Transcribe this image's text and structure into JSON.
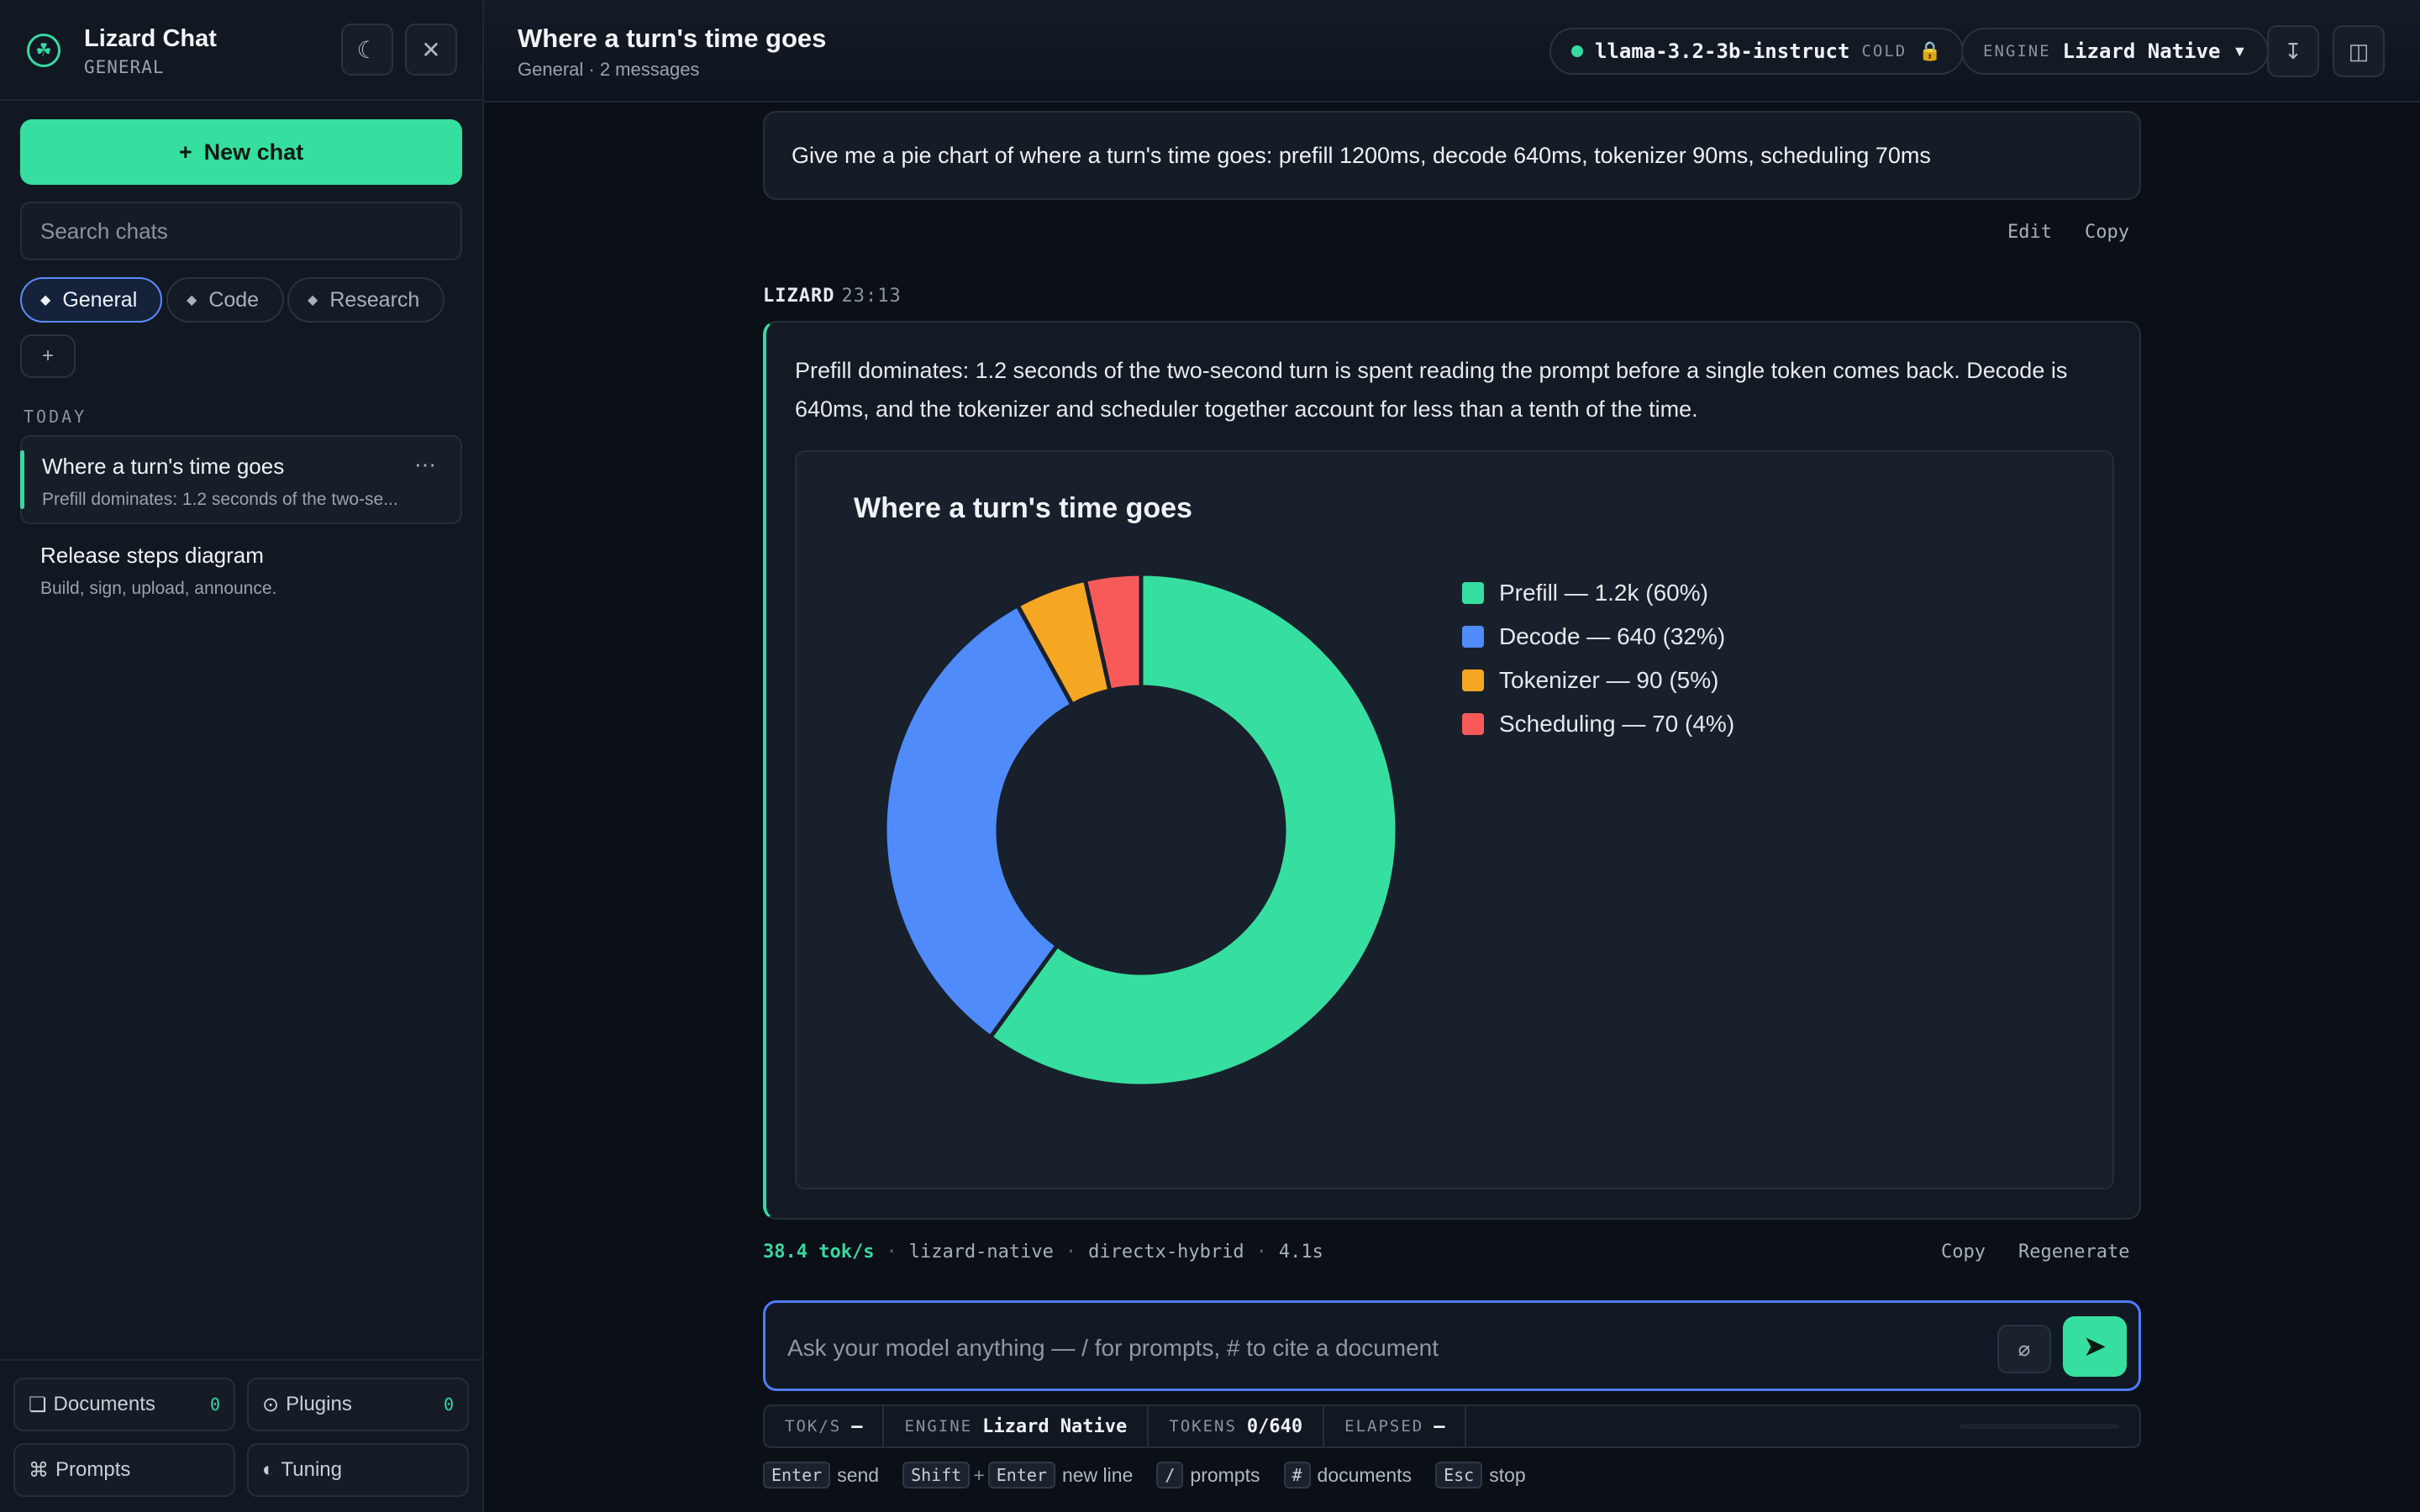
{
  "sidebar": {
    "brand_title": "Lizard Chat",
    "brand_sub": "GENERAL",
    "new_chat": "New chat",
    "search_placeholder": "Search chats",
    "chips": [
      {
        "label": "General"
      },
      {
        "label": "Code"
      },
      {
        "label": "Research"
      }
    ],
    "section_label": "TODAY",
    "conversations": [
      {
        "title": "Where a turn's time goes",
        "preview": "Prefill dominates: 1.2 seconds of the two-se..."
      },
      {
        "title": "Release steps diagram",
        "preview": "Build, sign, upload, announce."
      }
    ],
    "footer": {
      "documents": "Documents",
      "documents_count": "0",
      "plugins": "Plugins",
      "plugins_count": "0",
      "prompts": "Prompts",
      "tuning": "Tuning"
    }
  },
  "header": {
    "title": "Where a turn's time goes",
    "meta": "General · 2 messages",
    "model": "llama-3.2-3b-instruct",
    "model_state": "COLD",
    "engine_label": "ENGINE",
    "engine_value": "Lizard Native"
  },
  "messages": {
    "user_text": "Give me a pie chart of where a turn's time goes: prefill 1200ms, decode 640ms, tokenizer 90ms, scheduling 70ms",
    "user_edit": "Edit",
    "user_copy": "Copy",
    "assistant_name": "LIZARD",
    "assistant_time": "23:13",
    "assistant_text": "Prefill dominates: 1.2 seconds of the two-second turn is spent reading the prompt before a single token comes back. Decode is 640ms, and the tokenizer and scheduler together account for less than a tenth of the time.",
    "assistant_copy": "Copy",
    "assistant_regen": "Regenerate",
    "stats": {
      "tps": "38.4 tok/s",
      "runtime": "lizard-native",
      "backend": "directx-hybrid",
      "elapsed": "4.1s"
    }
  },
  "chart_data": {
    "type": "pie",
    "title": "Where a turn's time goes",
    "donut": true,
    "slices": [
      {
        "label": "Prefill",
        "value": 1200,
        "legend": "Prefill — 1.2k (60%)",
        "color": "#36df9f"
      },
      {
        "label": "Decode",
        "value": 640,
        "legend": "Decode — 640 (32%)",
        "color": "#4f8bfb"
      },
      {
        "label": "Tokenizer",
        "value": 90,
        "legend": "Tokenizer — 90 (5%)",
        "color": "#f5a623"
      },
      {
        "label": "Scheduling",
        "value": 70,
        "legend": "Scheduling — 70 (4%)",
        "color": "#f85a5a"
      }
    ],
    "legend_position": "right"
  },
  "composer": {
    "placeholder": "Ask your model anything — / for prompts, # to cite a document"
  },
  "statusbar": {
    "tps_label": "TOK/S",
    "tps_value": "–",
    "engine_label": "ENGINE",
    "engine_value": "Lizard Native",
    "tokens_label": "TOKENS",
    "tokens_value": "0/640",
    "elapsed_label": "ELAPSED",
    "elapsed_value": "–"
  },
  "hints": [
    {
      "keys": [
        "Enter"
      ],
      "text": "send"
    },
    {
      "keys": [
        "Shift",
        "Enter"
      ],
      "text": "new line"
    },
    {
      "keys": [
        "/"
      ],
      "text": "prompts"
    },
    {
      "keys": [
        "#"
      ],
      "text": "documents"
    },
    {
      "keys": [
        "Esc"
      ],
      "text": "stop"
    }
  ],
  "colors": {
    "accent": "#36df9f",
    "focus": "#4d7cff",
    "background": "#0b0f16"
  }
}
